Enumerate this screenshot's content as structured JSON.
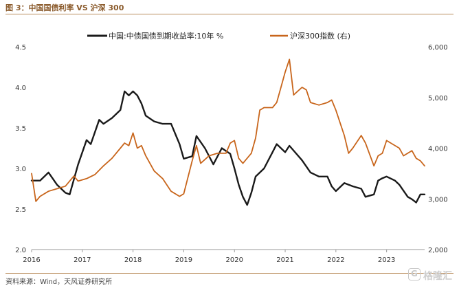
{
  "figure": {
    "title": "图 3：中国国债利率 VS 沪深 300",
    "source": "资料来源：Wind，天风证券研究所",
    "watermark": "格隆汇"
  },
  "chart_data": {
    "type": "line",
    "legend": [
      "中国:中债国债到期收益率:10年 %",
      "沪深300指数 (右)"
    ],
    "x_ticks": [
      "2016",
      "2017",
      "2018",
      "2019",
      "2020",
      "2021",
      "2022",
      "2023"
    ],
    "xlim": [
      "2016-01",
      "2023-10"
    ],
    "y_left": {
      "lim": [
        2.0,
        4.5
      ],
      "ticks": [
        "2.0",
        "2.5",
        "3.0",
        "3.5",
        "4.0",
        "4.5"
      ]
    },
    "y_right": {
      "lim": [
        2000,
        6000
      ],
      "ticks": [
        "2,000",
        "3,000",
        "4,000",
        "5,000",
        "6,000"
      ]
    },
    "colors": {
      "yield": "#1a1a1a",
      "csi300": "#c8651b"
    },
    "series": [
      {
        "name": "中国:中债国债到期收益率:10年 %",
        "axis": "left",
        "points": [
          [
            "2016-01",
            2.85
          ],
          [
            "2016-03",
            2.85
          ],
          [
            "2016-05",
            2.95
          ],
          [
            "2016-07",
            2.8
          ],
          [
            "2016-09",
            2.7
          ],
          [
            "2016-10",
            2.68
          ],
          [
            "2016-12",
            3.05
          ],
          [
            "2017-02",
            3.35
          ],
          [
            "2017-03",
            3.3
          ],
          [
            "2017-05",
            3.6
          ],
          [
            "2017-06",
            3.55
          ],
          [
            "2017-08",
            3.62
          ],
          [
            "2017-10",
            3.72
          ],
          [
            "2017-11",
            3.95
          ],
          [
            "2017-12",
            3.9
          ],
          [
            "2018-01",
            3.95
          ],
          [
            "2018-02",
            3.9
          ],
          [
            "2018-03",
            3.8
          ],
          [
            "2018-04",
            3.65
          ],
          [
            "2018-06",
            3.58
          ],
          [
            "2018-08",
            3.55
          ],
          [
            "2018-10",
            3.55
          ],
          [
            "2018-12",
            3.3
          ],
          [
            "2019-01",
            3.12
          ],
          [
            "2019-03",
            3.15
          ],
          [
            "2019-04",
            3.4
          ],
          [
            "2019-06",
            3.25
          ],
          [
            "2019-08",
            3.05
          ],
          [
            "2019-10",
            3.25
          ],
          [
            "2019-12",
            3.18
          ],
          [
            "2020-01",
            3.0
          ],
          [
            "2020-02",
            2.8
          ],
          [
            "2020-03",
            2.65
          ],
          [
            "2020-04",
            2.55
          ],
          [
            "2020-05",
            2.7
          ],
          [
            "2020-06",
            2.9
          ],
          [
            "2020-08",
            3.0
          ],
          [
            "2020-10",
            3.2
          ],
          [
            "2020-11",
            3.3
          ],
          [
            "2021-01",
            3.2
          ],
          [
            "2021-02",
            3.28
          ],
          [
            "2021-03",
            3.22
          ],
          [
            "2021-05",
            3.1
          ],
          [
            "2021-07",
            2.95
          ],
          [
            "2021-09",
            2.9
          ],
          [
            "2021-11",
            2.9
          ],
          [
            "2021-12",
            2.78
          ],
          [
            "2022-01",
            2.72
          ],
          [
            "2022-03",
            2.82
          ],
          [
            "2022-05",
            2.78
          ],
          [
            "2022-07",
            2.75
          ],
          [
            "2022-08",
            2.65
          ],
          [
            "2022-10",
            2.68
          ],
          [
            "2022-11",
            2.85
          ],
          [
            "2022-12",
            2.88
          ],
          [
            "2023-01",
            2.9
          ],
          [
            "2023-03",
            2.85
          ],
          [
            "2023-04",
            2.8
          ],
          [
            "2023-06",
            2.65
          ],
          [
            "2023-07",
            2.62
          ],
          [
            "2023-08",
            2.58
          ],
          [
            "2023-09",
            2.68
          ],
          [
            "2023-10",
            2.68
          ]
        ]
      },
      {
        "name": "沪深300指数 (右)",
        "axis": "right",
        "points": [
          [
            "2016-01",
            3500
          ],
          [
            "2016-02",
            2950
          ],
          [
            "2016-03",
            3050
          ],
          [
            "2016-05",
            3150
          ],
          [
            "2016-07",
            3200
          ],
          [
            "2016-09",
            3250
          ],
          [
            "2016-11",
            3450
          ],
          [
            "2016-12",
            3350
          ],
          [
            "2017-02",
            3400
          ],
          [
            "2017-04",
            3480
          ],
          [
            "2017-06",
            3650
          ],
          [
            "2017-08",
            3800
          ],
          [
            "2017-10",
            4000
          ],
          [
            "2017-11",
            4100
          ],
          [
            "2017-12",
            4050
          ],
          [
            "2018-01",
            4300
          ],
          [
            "2018-02",
            4000
          ],
          [
            "2018-03",
            4050
          ],
          [
            "2018-04",
            3850
          ],
          [
            "2018-06",
            3550
          ],
          [
            "2018-08",
            3400
          ],
          [
            "2018-10",
            3150
          ],
          [
            "2018-12",
            3050
          ],
          [
            "2019-01",
            3100
          ],
          [
            "2019-03",
            3750
          ],
          [
            "2019-04",
            4050
          ],
          [
            "2019-05",
            3700
          ],
          [
            "2019-07",
            3850
          ],
          [
            "2019-09",
            3900
          ],
          [
            "2019-11",
            3900
          ],
          [
            "2019-12",
            4100
          ],
          [
            "2020-01",
            4150
          ],
          [
            "2020-02",
            3800
          ],
          [
            "2020-03",
            3700
          ],
          [
            "2020-05",
            3900
          ],
          [
            "2020-06",
            4200
          ],
          [
            "2020-07",
            4750
          ],
          [
            "2020-08",
            4800
          ],
          [
            "2020-10",
            4800
          ],
          [
            "2020-11",
            4900
          ],
          [
            "2020-12",
            5200
          ],
          [
            "2021-01",
            5500
          ],
          [
            "2021-02",
            5750
          ],
          [
            "2021-03",
            5050
          ],
          [
            "2021-05",
            5200
          ],
          [
            "2021-06",
            5150
          ],
          [
            "2021-07",
            4900
          ],
          [
            "2021-09",
            4850
          ],
          [
            "2021-11",
            4900
          ],
          [
            "2021-12",
            4950
          ],
          [
            "2022-01",
            4750
          ],
          [
            "2022-03",
            4250
          ],
          [
            "2022-04",
            3900
          ],
          [
            "2022-05",
            4000
          ],
          [
            "2022-07",
            4250
          ],
          [
            "2022-08",
            4100
          ],
          [
            "2022-10",
            3650
          ],
          [
            "2022-11",
            3850
          ],
          [
            "2022-12",
            3900
          ],
          [
            "2023-01",
            4150
          ],
          [
            "2023-02",
            4100
          ],
          [
            "2023-04",
            4000
          ],
          [
            "2023-05",
            3850
          ],
          [
            "2023-06",
            3900
          ],
          [
            "2023-07",
            3950
          ],
          [
            "2023-08",
            3800
          ],
          [
            "2023-09",
            3750
          ],
          [
            "2023-10",
            3650
          ]
        ]
      }
    ]
  }
}
